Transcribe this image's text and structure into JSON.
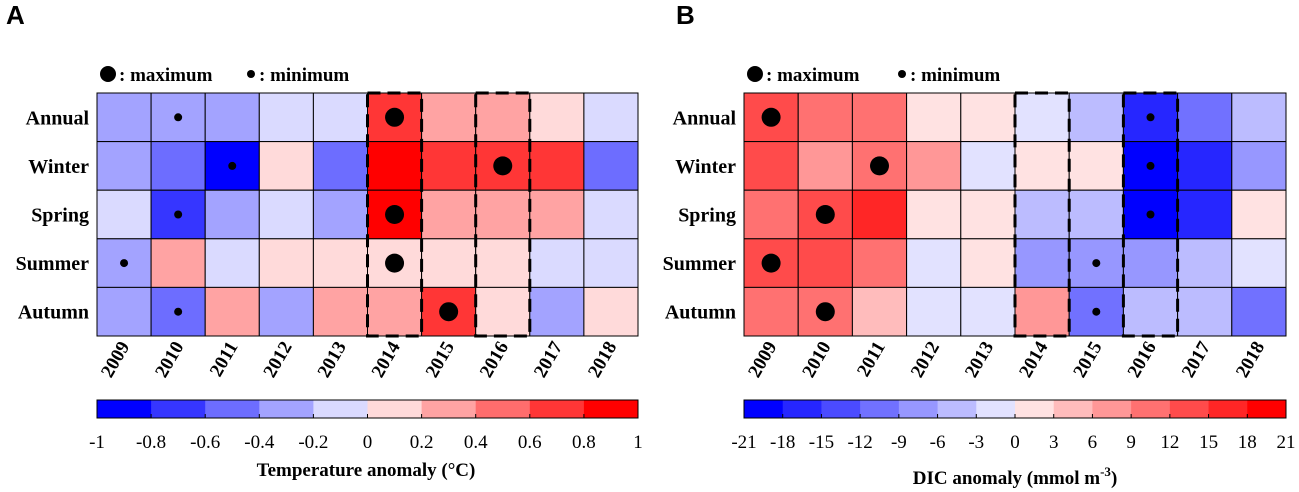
{
  "chart_data": [
    {
      "type": "heatmap",
      "panel_label": "A",
      "legend_max_text": ": maximum",
      "legend_min_text": ": minimum",
      "row_labels": [
        "Annual",
        "Winter",
        "Spring",
        "Summer",
        "Autumn"
      ],
      "column_labels": [
        "2009",
        "2010",
        "2011",
        "2012",
        "2013",
        "2014",
        "2015",
        "2016",
        "2017",
        "2018"
      ],
      "values": [
        [
          -0.3,
          -0.3,
          -0.3,
          -0.1,
          -0.1,
          0.7,
          0.3,
          0.3,
          0.1,
          -0.1
        ],
        [
          -0.3,
          -0.5,
          -0.9,
          0.1,
          -0.5,
          0.9,
          0.7,
          0.7,
          0.6,
          -0.5
        ],
        [
          -0.1,
          -0.7,
          -0.3,
          -0.1,
          -0.3,
          0.9,
          0.3,
          0.3,
          0.3,
          -0.1
        ],
        [
          -0.3,
          0.3,
          -0.1,
          0.1,
          0.1,
          0.1,
          0.1,
          0.1,
          -0.1,
          -0.1
        ],
        [
          -0.3,
          -0.5,
          0.3,
          -0.3,
          0.3,
          0.3,
          0.7,
          0.1,
          -0.3,
          0.1
        ]
      ],
      "maximum_markers": [
        [
          0,
          5
        ],
        [
          1,
          7
        ],
        [
          2,
          5
        ],
        [
          3,
          5
        ],
        [
          4,
          6
        ]
      ],
      "minimum_markers": [
        [
          0,
          1
        ],
        [
          1,
          2
        ],
        [
          2,
          1
        ],
        [
          3,
          0
        ],
        [
          4,
          1
        ]
      ],
      "highlighted_columns": [
        "2014",
        "2016"
      ],
      "colorbar_ticks": [
        "-1",
        "-0.8",
        "-0.6",
        "-0.4",
        "-0.2",
        "0",
        "0.2",
        "0.4",
        "0.6",
        "0.8",
        "1"
      ],
      "colorbar_range": [
        -1,
        1
      ],
      "colorbar_bins": 10,
      "colorbar_label": "Temperature anomaly (°C)",
      "colorbar_label_sup": ""
    },
    {
      "type": "heatmap",
      "panel_label": "B",
      "legend_max_text": ": maximum",
      "legend_min_text": ": minimum",
      "row_labels": [
        "Annual",
        "Winter",
        "Spring",
        "Summer",
        "Autumn"
      ],
      "column_labels": [
        "2009",
        "2010",
        "2011",
        "2012",
        "2013",
        "2014",
        "2015",
        "2016",
        "2017",
        "2018"
      ],
      "values": [
        [
          14,
          11,
          11,
          1.5,
          1.5,
          -1.5,
          -4.5,
          -16,
          -10,
          -4.5
        ],
        [
          14,
          7,
          11,
          7,
          -1.5,
          1.5,
          1.5,
          -19,
          -16,
          -7.5
        ],
        [
          11,
          14,
          16,
          1.5,
          1.5,
          -4.5,
          -4.5,
          -19,
          -16,
          1.5
        ],
        [
          14,
          14,
          11,
          -1.5,
          1.5,
          -7.5,
          -7.5,
          -7.5,
          -4.5,
          -1.5
        ],
        [
          11,
          11,
          4.5,
          -1.5,
          -1.5,
          7,
          -10,
          -4.5,
          -4.5,
          -10
        ]
      ],
      "maximum_markers": [
        [
          0,
          0
        ],
        [
          1,
          2
        ],
        [
          2,
          1
        ],
        [
          3,
          0
        ],
        [
          4,
          1
        ]
      ],
      "minimum_markers": [
        [
          0,
          7
        ],
        [
          1,
          7
        ],
        [
          2,
          7
        ],
        [
          3,
          6
        ],
        [
          4,
          6
        ]
      ],
      "highlighted_columns": [
        "2014",
        "2016"
      ],
      "colorbar_ticks": [
        "-21",
        "-18",
        "-15",
        "-12",
        "-9",
        "-6",
        "-3",
        "0",
        "3",
        "6",
        "9",
        "12",
        "15",
        "18",
        "21"
      ],
      "colorbar_range": [
        -21,
        21
      ],
      "colorbar_bins": 14,
      "colorbar_label": "DIC anomaly (mmol m",
      "colorbar_label_sup": "-3",
      "colorbar_label_end": ")"
    }
  ]
}
